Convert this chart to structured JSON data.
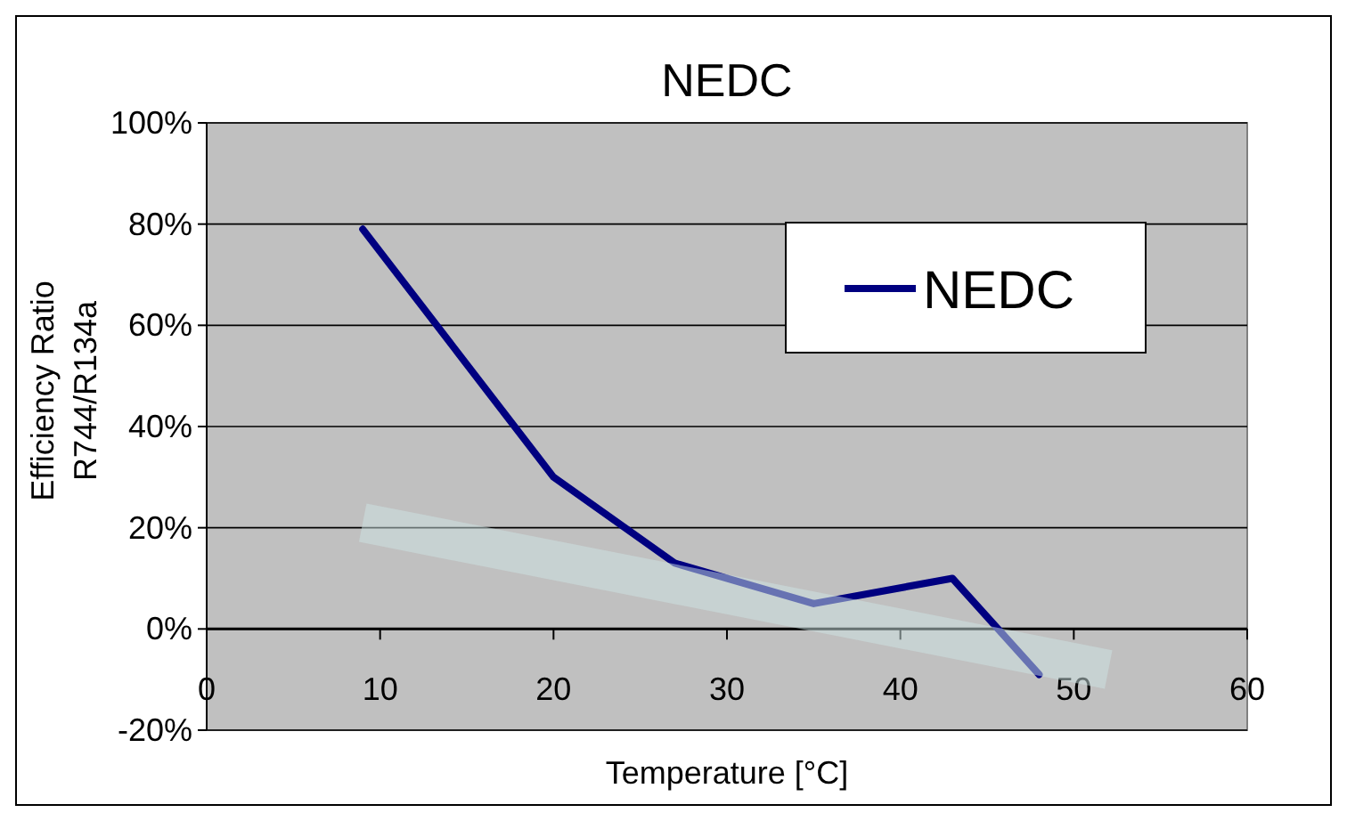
{
  "chart_data": {
    "type": "line",
    "title": "NEDC",
    "xlabel": "Temperature [°C]",
    "ylabel": "Efficiency Ratio\nR744/R134a",
    "xlim": [
      0,
      60
    ],
    "xticks": [
      0,
      10,
      20,
      30,
      40,
      50,
      60
    ],
    "ylim": [
      -20,
      100
    ],
    "yticks": [
      {
        "value": -20,
        "label": "-20%"
      },
      {
        "value": 0,
        "label": "0%"
      },
      {
        "value": 20,
        "label": "20%"
      },
      {
        "value": 40,
        "label": "40%"
      },
      {
        "value": 60,
        "label": "60%"
      },
      {
        "value": 80,
        "label": "80%"
      },
      {
        "value": 100,
        "label": "100%"
      }
    ],
    "grid": "y",
    "legend": "top right",
    "marker": "none",
    "series": [
      {
        "name": "NEDC",
        "color": "#000080",
        "x": [
          9,
          20,
          27,
          35,
          43,
          48
        ],
        "values": [
          79,
          30,
          13,
          5,
          10,
          -9
        ]
      },
      {
        "type": "line",
        "color": "#cde4e4",
        "x": [
          9,
          52
        ],
        "values": [
          21,
          -8
        ]
      }
    ]
  }
}
